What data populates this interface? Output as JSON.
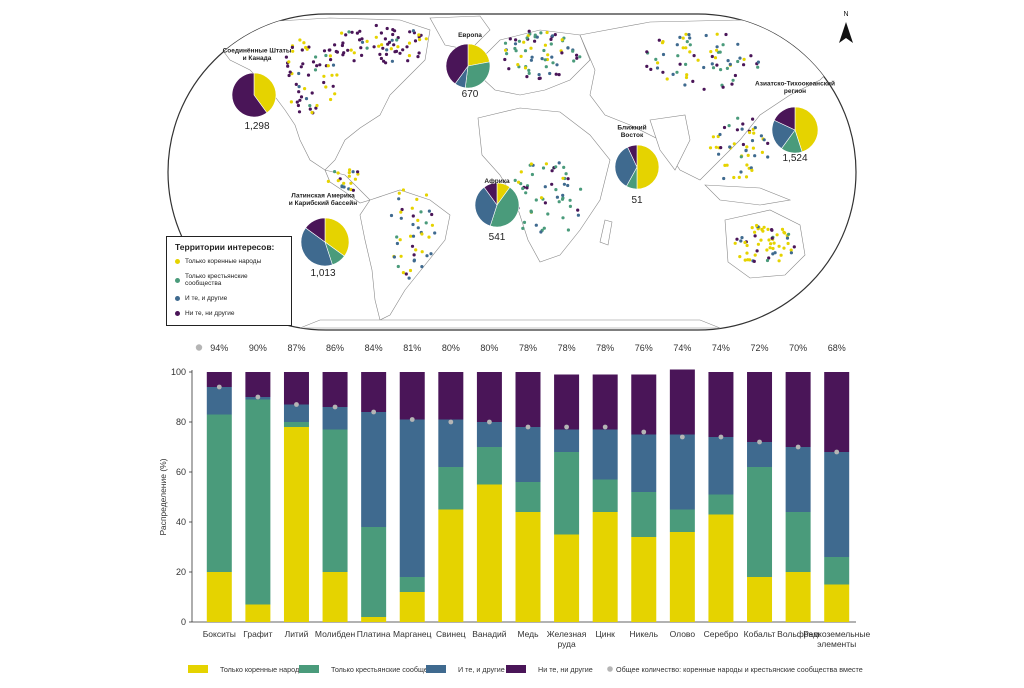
{
  "colors": {
    "indigenous": "#e5d300",
    "peasant": "#4a9b7b",
    "both": "#3f6a8f",
    "neither": "#4a1558",
    "total_dot": "#b5b5b5",
    "map_land": "#ffffff",
    "map_border": "#888888"
  },
  "map": {
    "north_label": "N",
    "legend": {
      "title": "Территории интересов:",
      "items": [
        {
          "key": "indigenous",
          "label": "Только коренные народы"
        },
        {
          "key": "peasant",
          "label": "Только крестьянские сообщества"
        },
        {
          "key": "both",
          "label": "И те, и другие"
        },
        {
          "key": "neither",
          "label": "Ни те, ни другие"
        }
      ]
    },
    "regions": [
      {
        "name_lines": [
          "Соединённые Штаты",
          "и Канада"
        ],
        "total": "1,298",
        "shares": {
          "indigenous": 40,
          "peasant": 0,
          "both": 0,
          "neither": 60
        }
      },
      {
        "name_lines": [
          "Европа"
        ],
        "total": "670",
        "shares": {
          "indigenous": 22,
          "peasant": 30,
          "both": 8,
          "neither": 40
        }
      },
      {
        "name_lines": [
          "Азиатско-Тихоокеанский",
          "регион"
        ],
        "total": "1,524",
        "shares": {
          "indigenous": 45,
          "peasant": 15,
          "both": 22,
          "neither": 18
        }
      },
      {
        "name_lines": [
          "Ближний",
          "Восток"
        ],
        "total": "51",
        "shares": {
          "indigenous": 50,
          "peasant": 8,
          "both": 35,
          "neither": 7
        }
      },
      {
        "name_lines": [
          "Африка"
        ],
        "total": "541",
        "shares": {
          "indigenous": 10,
          "peasant": 45,
          "both": 35,
          "neither": 10
        }
      },
      {
        "name_lines": [
          "Латинская Америка",
          "и Карибский бассейн"
        ],
        "total": "1,013",
        "shares": {
          "indigenous": 35,
          "peasant": 10,
          "both": 40,
          "neither": 15
        }
      }
    ]
  },
  "chart_data": {
    "type": "bar",
    "stacked": true,
    "ylabel": "Распределение (%)",
    "ylim": [
      0,
      100
    ],
    "yticks": [
      0,
      20,
      40,
      60,
      80,
      100
    ],
    "categories": [
      "Бокситы",
      "Графит",
      "Литий",
      "Молибден",
      "Платина",
      "Марганец",
      "Свинец",
      "Ванадий",
      "Медь",
      "Железная руда",
      "Цинк",
      "Никель",
      "Олово",
      "Серебро",
      "Кобальт",
      "Вольфрам",
      "Редкоземельные элементы"
    ],
    "category_lines": [
      [
        "Бокситы"
      ],
      [
        "Графит"
      ],
      [
        "Литий"
      ],
      [
        "Молибден"
      ],
      [
        "Платина"
      ],
      [
        "Марганец"
      ],
      [
        "Свинец"
      ],
      [
        "Ванадий"
      ],
      [
        "Медь"
      ],
      [
        "Железная",
        "руда"
      ],
      [
        "Цинк"
      ],
      [
        "Никель"
      ],
      [
        "Олово"
      ],
      [
        "Серебро"
      ],
      [
        "Кобальт"
      ],
      [
        "Вольфрам"
      ],
      [
        "Редкоземельные",
        "элементы"
      ]
    ],
    "series": [
      {
        "name": "Только коренные народы",
        "key": "indigenous",
        "values": [
          20,
          7,
          78,
          20,
          2,
          12,
          45,
          55,
          44,
          35,
          44,
          34,
          36,
          43,
          18,
          20,
          15
        ]
      },
      {
        "name": "Только крестьянские сообщества",
        "key": "peasant",
        "values": [
          63,
          82,
          2,
          57,
          36,
          6,
          17,
          15,
          12,
          33,
          13,
          18,
          9,
          8,
          44,
          24,
          11
        ]
      },
      {
        "name": "И те, и другие",
        "key": "both",
        "values": [
          11,
          1,
          7,
          9,
          46,
          63,
          19,
          10,
          22,
          9,
          20,
          23,
          30,
          23,
          10,
          26,
          42
        ]
      },
      {
        "name": "Ни те, ни другие",
        "key": "neither",
        "values": [
          6,
          10,
          13,
          14,
          16,
          19,
          19,
          20,
          22,
          22,
          22,
          24,
          26,
          26,
          28,
          30,
          32
        ]
      }
    ],
    "combined_share": {
      "name": "Общее количество: коренные народы и крестьянские сообщества вместе",
      "values": [
        94,
        90,
        87,
        86,
        84,
        81,
        80,
        80,
        78,
        78,
        78,
        76,
        74,
        74,
        72,
        70,
        68
      ]
    },
    "combined_labels": [
      "94%",
      "90%",
      "87%",
      "86%",
      "84%",
      "81%",
      "80%",
      "80%",
      "78%",
      "78%",
      "78%",
      "76%",
      "74%",
      "74%",
      "72%",
      "70%",
      "68%"
    ],
    "legend_position": "bottom"
  }
}
